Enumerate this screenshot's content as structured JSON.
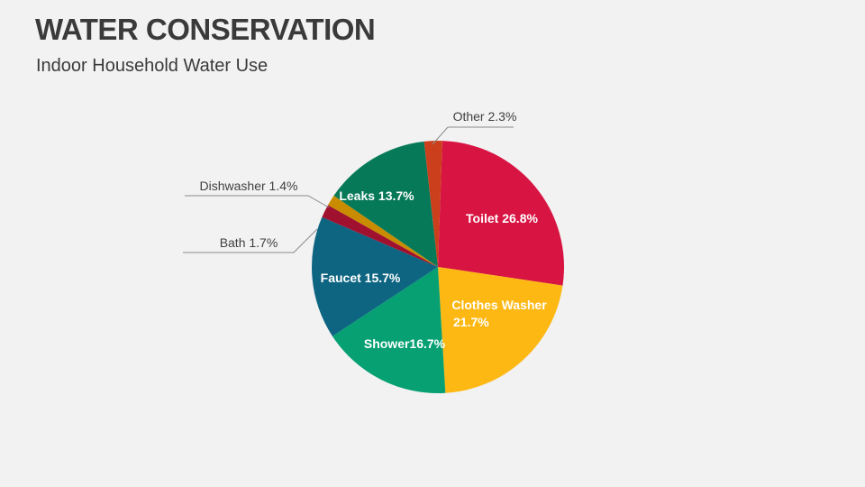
{
  "title": "WATER CONSERVATION",
  "subtitle": "Indoor Household Water Use",
  "chart_data": {
    "type": "pie",
    "categories": [
      "Toilet",
      "Clothes Washer",
      "Shower",
      "Faucet",
      "Bath",
      "Dishwasher",
      "Leaks",
      "Other"
    ],
    "values": [
      26.8,
      21.7,
      16.7,
      15.7,
      1.7,
      1.4,
      13.7,
      2.3
    ],
    "labels": [
      "Toilet 26.8%",
      "Clothes Washer 21.7%",
      "Shower16.7%",
      "Faucet 15.7%",
      "Bath 1.7%",
      "Dishwasher 1.4%",
      "Leaks 13.7%",
      "Other 2.3%"
    ],
    "colors": [
      "#d81442",
      "#fdb813",
      "#06a073",
      "#0e6582",
      "#a0102f",
      "#c98c00",
      "#067a58",
      "#cc3f1c"
    ]
  }
}
